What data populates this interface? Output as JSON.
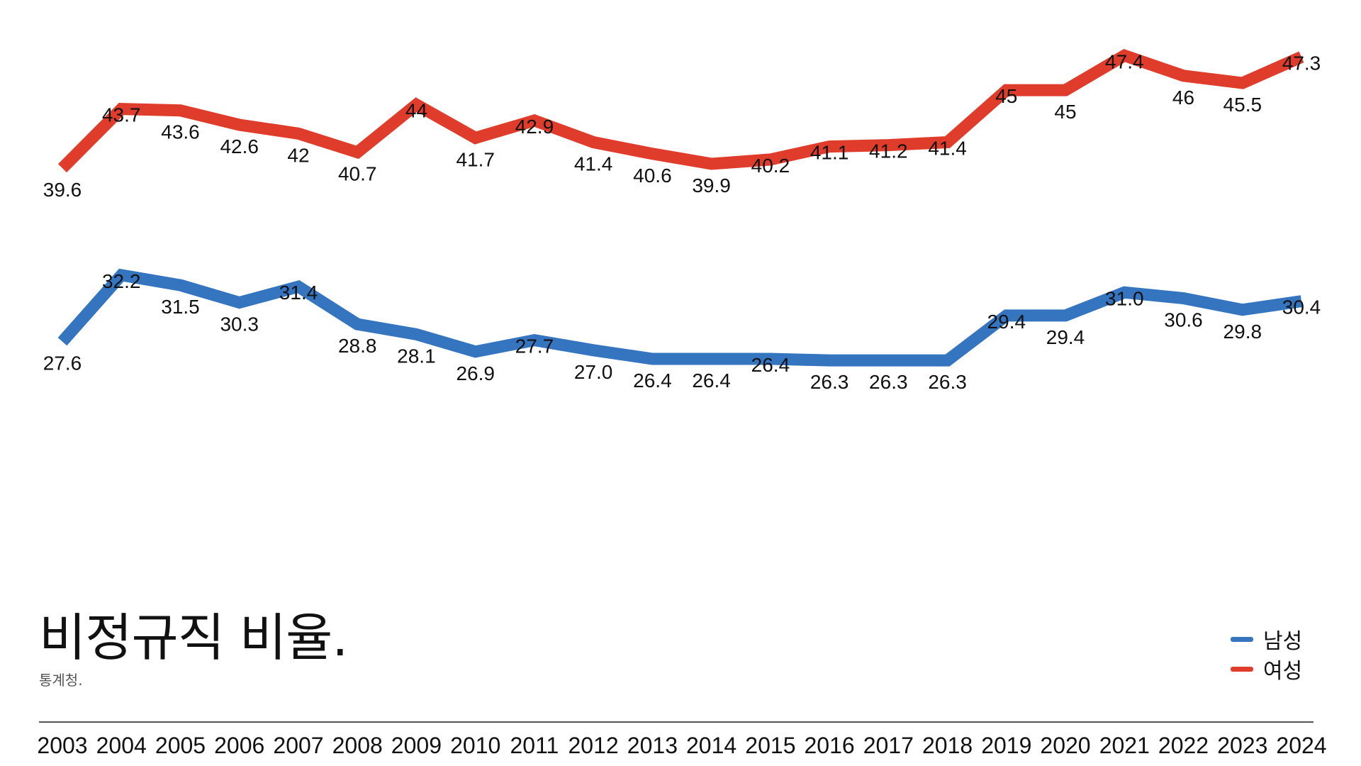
{
  "chart_data": {
    "type": "line",
    "title": "비정규직 비율.",
    "subtitle": "통계청.",
    "x": [
      "2003",
      "2004",
      "2005",
      "2006",
      "2007",
      "2008",
      "2009",
      "2010",
      "2011",
      "2012",
      "2013",
      "2014",
      "2015",
      "2016",
      "2017",
      "2018",
      "2019",
      "2020",
      "2021",
      "2022",
      "2023",
      "2024"
    ],
    "series": [
      {
        "name": "여성",
        "color": "#e03c2c",
        "values": [
          39.6,
          43.7,
          43.6,
          42.6,
          42,
          40.7,
          44,
          41.7,
          42.9,
          41.4,
          40.6,
          39.9,
          40.2,
          41.1,
          41.2,
          41.4,
          45,
          45,
          47.4,
          46,
          45.5,
          47.3
        ],
        "labels": [
          "39.6",
          "43.7",
          "43.6",
          "42.6",
          "42",
          "40.7",
          "44",
          "41.7",
          "42.9",
          "41.4",
          "40.6",
          "39.9",
          "40.2",
          "41.1",
          "41.2",
          "41.4",
          "45",
          "45",
          "47.4",
          "46",
          "45.5",
          "47.3"
        ]
      },
      {
        "name": "남성",
        "color": "#3575c0",
        "values": [
          27.6,
          32.2,
          31.5,
          30.3,
          31.4,
          28.8,
          28.1,
          26.9,
          27.7,
          27.0,
          26.4,
          26.4,
          26.4,
          26.3,
          26.3,
          26.3,
          29.4,
          29.4,
          31.0,
          30.6,
          29.8,
          30.4
        ],
        "labels": [
          "27.6",
          "32.2",
          "31.5",
          "30.3",
          "31.4",
          "28.8",
          "28.1",
          "26.9",
          "27.7",
          "27.0",
          "26.4",
          "26.4",
          "26.4",
          "26.3",
          "26.3",
          "26.3",
          "29.4",
          "29.4",
          "31.0",
          "30.6",
          "29.8",
          "30.4"
        ]
      }
    ],
    "legend": [
      {
        "name": "남성",
        "color": "#3575c0"
      },
      {
        "name": "여성",
        "color": "#e03c2c"
      }
    ],
    "legend_position": "bottom-right",
    "grid": false
  }
}
